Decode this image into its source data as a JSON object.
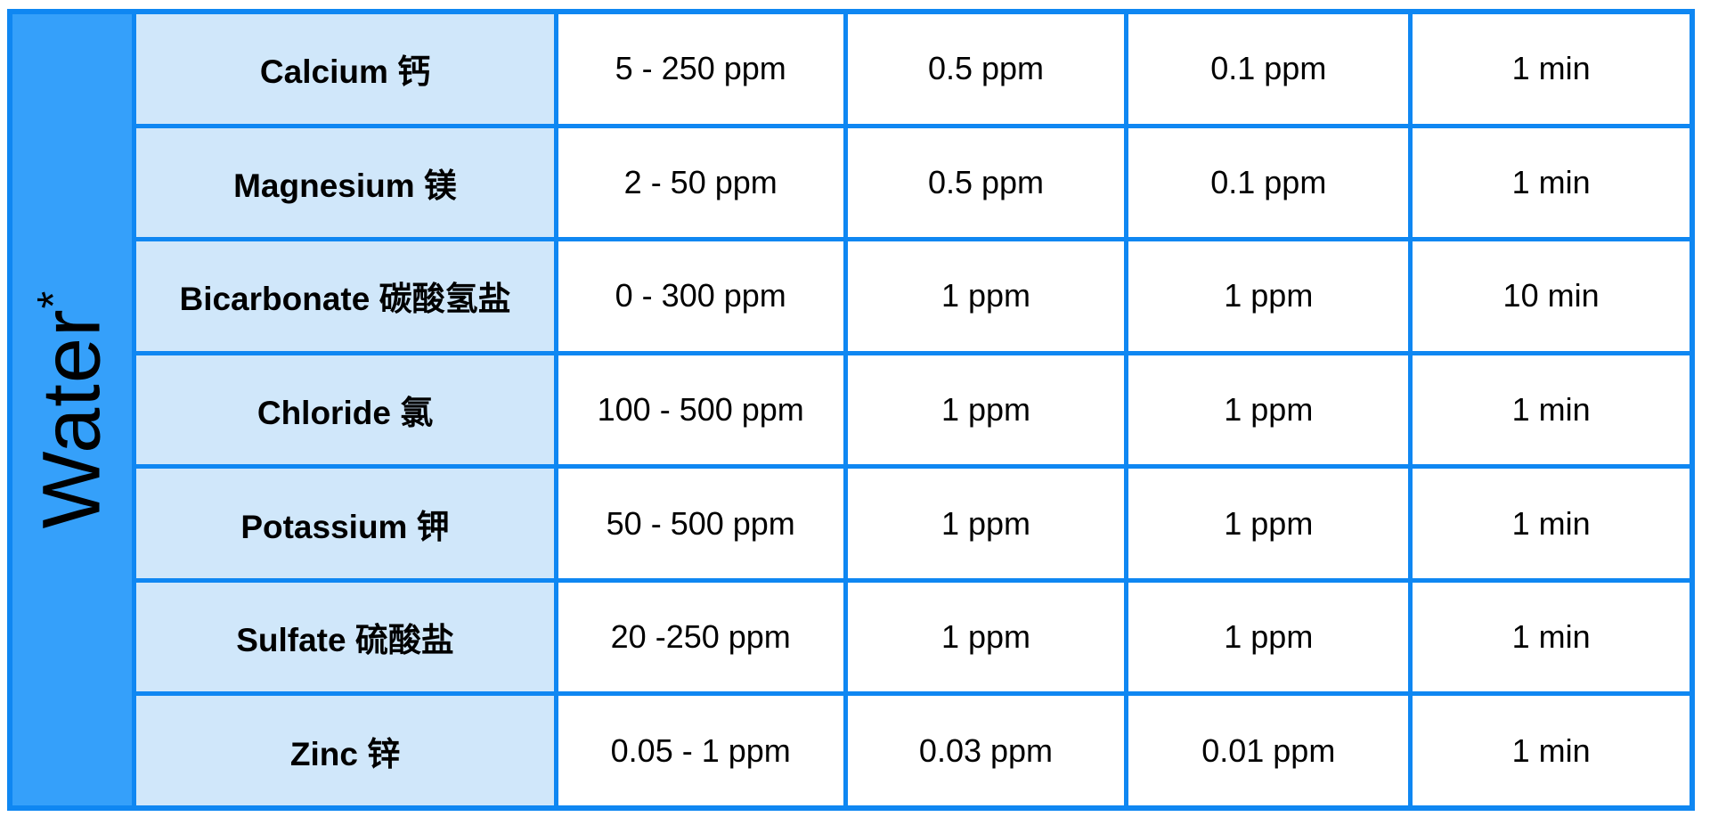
{
  "sidebar": {
    "label": "Water",
    "superscript": "*"
  },
  "rows": [
    {
      "name": "Calcium 钙",
      "range": "5 - 250 ppm",
      "value_a": "0.5 ppm",
      "value_b": "0.1 ppm",
      "time": "1 min"
    },
    {
      "name": "Magnesium 镁",
      "range": "2 - 50 ppm",
      "value_a": "0.5 ppm",
      "value_b": "0.1 ppm",
      "time": "1 min"
    },
    {
      "name": "Bicarbonate 碳酸氢盐",
      "range": "0 - 300 ppm",
      "value_a": "1 ppm",
      "value_b": "1 ppm",
      "time": "10 min"
    },
    {
      "name": "Chloride 氯",
      "range": "100 - 500 ppm",
      "value_a": "1 ppm",
      "value_b": "1 ppm",
      "time": "1 min"
    },
    {
      "name": "Potassium 钾",
      "range": "50 - 500 ppm",
      "value_a": "1 ppm",
      "value_b": "1 ppm",
      "time": "1 min"
    },
    {
      "name": "Sulfate 硫酸盐",
      "range": "20 -250 ppm",
      "value_a": "1 ppm",
      "value_b": "1 ppm",
      "time": "1 min"
    },
    {
      "name": "Zinc 锌",
      "range": "0.05 - 1 ppm",
      "value_a": "0.03 ppm",
      "value_b": "0.01 ppm",
      "time": "1 min"
    }
  ],
  "colors": {
    "grid_border_blue": "#0f87f2",
    "sidebar_blue": "#35a0fa",
    "label_cell_blue": "#d0e7fa",
    "value_cell_white": "#ffffff",
    "text_black": "#000000"
  }
}
